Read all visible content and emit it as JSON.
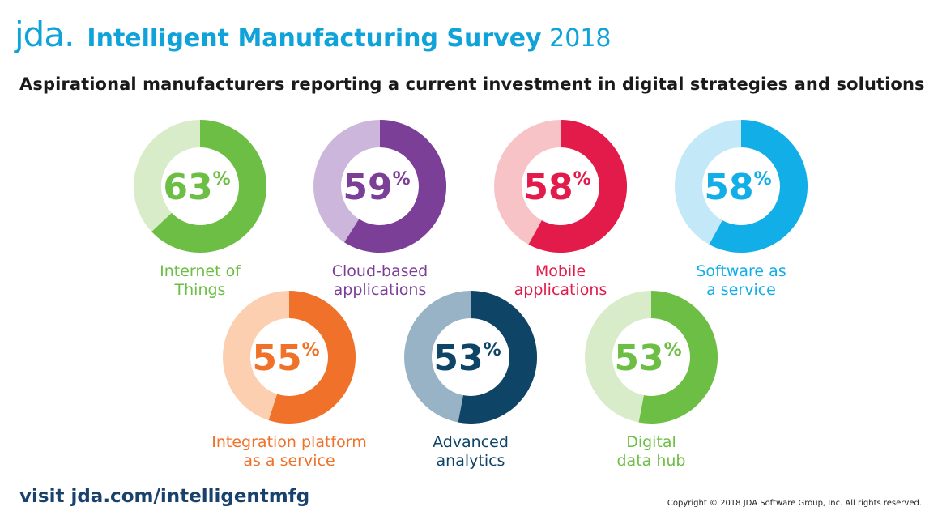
{
  "header": {
    "logo": "jda.",
    "title_bold": "Intelligent Manufacturing Survey",
    "title_year": "2018"
  },
  "subtitle": "Aspirational manufacturers reporting a current investment in digital strategies and solutions",
  "chart_data": {
    "type": "pie",
    "unit": "%",
    "series": [
      {
        "label_lines": [
          "Internet of",
          "Things"
        ],
        "value": 63,
        "color": "#6dbe45",
        "light_color": "#d9ecc9"
      },
      {
        "label_lines": [
          "Cloud-based",
          "applications"
        ],
        "value": 59,
        "color": "#7b3f98",
        "light_color": "#cdb6dc"
      },
      {
        "label_lines": [
          "Mobile",
          "applications"
        ],
        "value": 58,
        "color": "#e31b4b",
        "light_color": "#f8c3c6"
      },
      {
        "label_lines": [
          "Software as",
          "a service"
        ],
        "value": 58,
        "color": "#12aee8",
        "light_color": "#c3e8f8"
      },
      {
        "label_lines": [
          "Integration platform",
          "as a service"
        ],
        "value": 55,
        "color": "#f0722a",
        "light_color": "#fccfb0"
      },
      {
        "label_lines": [
          "Advanced",
          "analytics"
        ],
        "value": 53,
        "color": "#0e4466",
        "light_color": "#98b3c6"
      },
      {
        "label_lines": [
          "Digital",
          "data hub"
        ],
        "value": 53,
        "color": "#6dbe45",
        "light_color": "#d9ecc9"
      }
    ]
  },
  "footer": {
    "link": "visit jda.com/intelligentmfg",
    "copyright": "Copyright © 2018 JDA Software Group, Inc. All rights reserved."
  }
}
